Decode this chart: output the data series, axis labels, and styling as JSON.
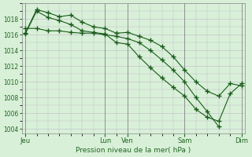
{
  "bg_color": "#d8f0d8",
  "grid_color": "#c0b8c8",
  "line_color": "#1a5c1a",
  "title": "Pression niveau de la mer( hPa )",
  "ylim": [
    1003.5,
    1020.0
  ],
  "yticks": [
    1004,
    1006,
    1008,
    1010,
    1012,
    1014,
    1016,
    1018
  ],
  "xlim": [
    -0.3,
    19.3
  ],
  "xtick_labels": [
    "Jeu",
    "Lun",
    "Ven",
    "Sam",
    "Dim"
  ],
  "xtick_positions": [
    0,
    7,
    9,
    14,
    19
  ],
  "vlines": [
    0,
    7,
    9,
    14,
    19
  ],
  "line1_x": [
    0,
    1,
    2,
    3,
    4,
    5,
    6,
    7,
    8,
    9,
    10,
    11,
    12,
    13,
    14,
    15,
    16,
    17,
    18,
    19
  ],
  "line1_y": [
    1016.2,
    1019.2,
    1018.8,
    1018.3,
    1018.5,
    1017.6,
    1017.0,
    1016.8,
    1016.2,
    1016.3,
    1015.8,
    1015.3,
    1014.5,
    1013.2,
    1011.5,
    1010.0,
    1008.8,
    1008.2,
    1009.8,
    1009.5
  ],
  "line2_x": [
    0,
    1,
    2,
    3,
    4,
    5,
    6,
    7,
    8,
    9,
    10,
    11,
    12,
    13,
    14,
    15,
    16,
    17,
    18,
    19
  ],
  "line2_y": [
    1016.1,
    1019.0,
    1018.2,
    1017.8,
    1017.3,
    1016.5,
    1016.3,
    1016.1,
    1015.0,
    1014.8,
    1013.2,
    1011.8,
    1010.5,
    1009.3,
    1008.2,
    1006.5,
    1005.5,
    1005.0,
    1008.5,
    1009.8
  ],
  "line3_x": [
    0,
    1,
    2,
    3,
    4,
    5,
    6,
    7,
    8,
    9,
    10,
    11,
    12,
    13,
    14,
    15,
    16,
    17
  ],
  "line3_y": [
    1016.8,
    1016.8,
    1016.5,
    1016.5,
    1016.3,
    1016.2,
    1016.2,
    1016.0,
    1015.8,
    1015.5,
    1015.0,
    1014.0,
    1012.8,
    1011.5,
    1010.0,
    1008.0,
    1006.2,
    1004.3
  ]
}
